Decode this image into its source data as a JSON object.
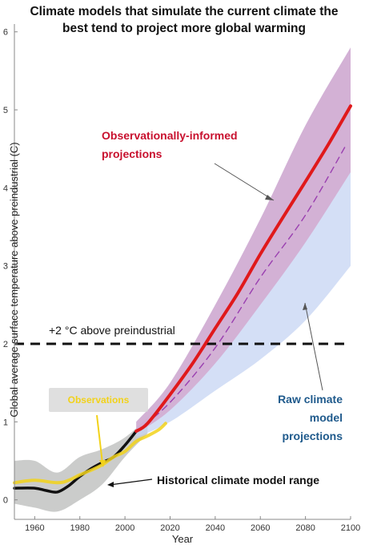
{
  "chart_data": {
    "type": "line",
    "title": [
      "Climate models that simulate the current climate the",
      "best tend to project more global warming"
    ],
    "xlabel": "Year",
    "ylabel": "Global average surface temperature above preindustrial (C)",
    "xlim": [
      1951,
      2100
    ],
    "ylim": [
      -0.25,
      6.1
    ],
    "xticks": [
      1960,
      1980,
      2000,
      2020,
      2040,
      2060,
      2080,
      2100
    ],
    "yticks": [
      0,
      1,
      2,
      3,
      4,
      5,
      6
    ],
    "grid": false,
    "series": [
      {
        "name": "Historical climate model range",
        "kind": "band",
        "color": "#a9aaa8",
        "x": [
          1951,
          1960,
          1970,
          1980,
          1990,
          2000,
          2010
        ],
        "lower": [
          -0.05,
          -0.1,
          -0.15,
          0.0,
          0.2,
          0.55,
          0.85
        ],
        "upper": [
          0.5,
          0.5,
          0.35,
          0.55,
          0.65,
          0.8,
          1.05
        ]
      },
      {
        "kind": "line",
        "color": "#111111",
        "x": [
          1951,
          1960,
          1965,
          1970,
          1975,
          1980,
          1985,
          1990,
          1995,
          2000,
          2005
        ],
        "y": [
          0.15,
          0.15,
          0.12,
          0.1,
          0.18,
          0.3,
          0.4,
          0.48,
          0.55,
          0.7,
          0.88
        ]
      },
      {
        "name": "Observations",
        "kind": "line",
        "color": "#f2d21a",
        "x": [
          1951,
          1960,
          1970,
          1975,
          1980,
          1985,
          1990,
          1995,
          2000,
          2005,
          2010,
          2015,
          2018
        ],
        "y": [
          0.22,
          0.25,
          0.22,
          0.25,
          0.32,
          0.38,
          0.45,
          0.55,
          0.62,
          0.75,
          0.82,
          0.9,
          0.98
        ]
      },
      {
        "name": "Raw climate model projections",
        "kind": "band",
        "color": "#c6d4f3",
        "x": [
          2005,
          2020,
          2040,
          2060,
          2080,
          2100
        ],
        "lower": [
          0.8,
          1.0,
          1.4,
          1.8,
          2.3,
          3.0
        ],
        "upper": [
          1.0,
          1.5,
          2.5,
          3.6,
          4.8,
          5.8
        ]
      },
      {
        "name": "Observationally-informed projections",
        "kind": "band",
        "color": "#d3a2c9",
        "x": [
          2005,
          2020,
          2040,
          2060,
          2080,
          2100
        ],
        "lower": [
          0.85,
          1.15,
          1.75,
          2.5,
          3.3,
          4.2
        ],
        "upper": [
          1.0,
          1.5,
          2.5,
          3.6,
          4.8,
          5.8
        ]
      },
      {
        "name": "Raw climate model projections",
        "kind": "dashed-line",
        "color": "#9a3fb0",
        "x": [
          2005,
          2020,
          2040,
          2060,
          2080,
          2098
        ],
        "y": [
          0.88,
          1.25,
          1.95,
          2.85,
          3.65,
          4.55
        ]
      },
      {
        "name": "Observationally-informed projections",
        "kind": "line",
        "color": "#e0191b",
        "x": [
          2005,
          2010,
          2020,
          2030,
          2040,
          2050,
          2060,
          2070,
          2080,
          2090,
          2100
        ],
        "y": [
          0.88,
          0.98,
          1.35,
          1.75,
          2.2,
          2.65,
          3.15,
          3.62,
          4.08,
          4.55,
          5.05
        ]
      }
    ],
    "reference_line": {
      "y": 2,
      "label": "+2 °C above preindustrial",
      "style": "dashed",
      "color": "#111111"
    },
    "annotations": {
      "observationally_informed": [
        "Observationally-informed",
        "projections"
      ],
      "raw": [
        "Raw climate",
        "model",
        "projections"
      ],
      "historical": "Historical climate model range",
      "observations": "Observations"
    }
  }
}
